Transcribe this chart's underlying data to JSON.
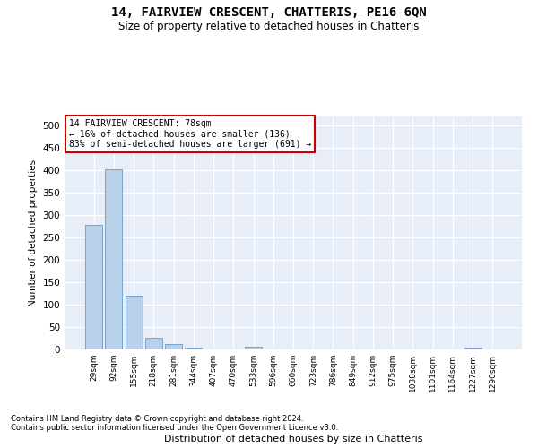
{
  "title": "14, FAIRVIEW CRESCENT, CHATTERIS, PE16 6QN",
  "subtitle": "Size of property relative to detached houses in Chatteris",
  "xlabel": "Distribution of detached houses by size in Chatteris",
  "ylabel": "Number of detached properties",
  "bar_color": "#b8d0e8",
  "bar_edge_color": "#6699cc",
  "background_color": "#e8eef8",
  "grid_color": "#ffffff",
  "categories": [
    "29sqm",
    "92sqm",
    "155sqm",
    "218sqm",
    "281sqm",
    "344sqm",
    "407sqm",
    "470sqm",
    "533sqm",
    "596sqm",
    "660sqm",
    "723sqm",
    "786sqm",
    "849sqm",
    "912sqm",
    "975sqm",
    "1038sqm",
    "1101sqm",
    "1164sqm",
    "1227sqm",
    "1290sqm"
  ],
  "values": [
    278,
    402,
    120,
    26,
    13,
    5,
    0,
    0,
    6,
    0,
    0,
    0,
    0,
    0,
    0,
    0,
    0,
    0,
    0,
    5,
    0
  ],
  "ylim": [
    0,
    520
  ],
  "yticks": [
    0,
    50,
    100,
    150,
    200,
    250,
    300,
    350,
    400,
    450,
    500
  ],
  "annotation_text": "14 FAIRVIEW CRESCENT: 78sqm\n← 16% of detached houses are smaller (136)\n83% of semi-detached houses are larger (691) →",
  "annotation_box_color": "#ffffff",
  "annotation_box_edge": "#cc0000",
  "footnote1": "Contains HM Land Registry data © Crown copyright and database right 2024.",
  "footnote2": "Contains public sector information licensed under the Open Government Licence v3.0."
}
